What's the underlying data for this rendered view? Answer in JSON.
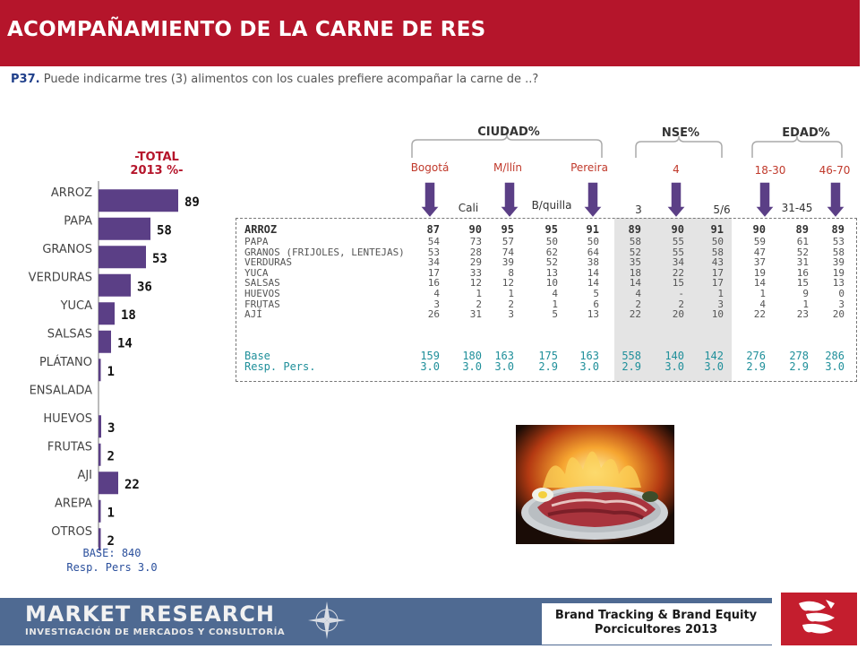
{
  "header": {
    "title": "ACOMPAÑAMIENTO DE LA CARNE DE RES"
  },
  "question": {
    "id": "P37.",
    "text": "Puede indicarme tres (3) alimentos con los cuales prefiere acompañar la carne de ..?"
  },
  "total": {
    "line1": "-TOTAL",
    "line2": "2013 %-"
  },
  "base": {
    "line1": "BASE:  840",
    "line2": "Resp. Pers  3.0"
  },
  "colors": {
    "bar": "#5b3f86",
    "accent": "#b5152b",
    "teal": "#1f8f9a",
    "footer": "#4f6a92"
  },
  "chart_data": {
    "type": "bar",
    "orientation": "horizontal",
    "title": "ACOMPAÑAMIENTO DE LA CARNE DE RES",
    "categories": [
      "ARROZ",
      "PAPA",
      "GRANOS",
      "VERDURAS",
      "YUCA",
      "SALSAS",
      "PLÁTANO",
      "ENSALADA",
      "HUEVOS",
      "FRUTAS",
      "AJI",
      "AREPA",
      "OTROS"
    ],
    "values": [
      89,
      58,
      53,
      36,
      18,
      14,
      1,
      0,
      3,
      2,
      22,
      1,
      2
    ],
    "value_labels": [
      "89",
      "58",
      "53",
      "36",
      "18",
      "14",
      "1",
      "",
      "3",
      "2",
      "22",
      "1",
      "2"
    ],
    "xlim": [
      0,
      100
    ]
  },
  "table": {
    "groups": [
      {
        "name": "CIUDAD%"
      },
      {
        "name": "NSE%"
      },
      {
        "name": "EDAD%"
      }
    ],
    "column_headers_top": [
      "Bogotá",
      "M/llín",
      "Pereira",
      "4",
      "18-30",
      "46-70"
    ],
    "column_headers_bottom": [
      "Cali",
      "B/quilla",
      "3",
      "5/6",
      "31-45"
    ],
    "rows": [
      {
        "label": "ARROZ",
        "values": [
          "87",
          "90",
          "95",
          "95",
          "91",
          "89",
          "90",
          "91",
          "90",
          "89",
          "89"
        ]
      },
      {
        "label": "PAPA",
        "values": [
          "54",
          "73",
          "57",
          "50",
          "50",
          "58",
          "55",
          "50",
          "59",
          "61",
          "53"
        ]
      },
      {
        "label": "GRANOS (FRIJOLES, LENTEJAS)",
        "values": [
          "53",
          "28",
          "74",
          "62",
          "64",
          "52",
          "55",
          "58",
          "47",
          "52",
          "58"
        ]
      },
      {
        "label": "VERDURAS",
        "values": [
          "34",
          "29",
          "39",
          "52",
          "38",
          "35",
          "34",
          "43",
          "37",
          "31",
          "39"
        ]
      },
      {
        "label": "YUCA",
        "values": [
          "17",
          "33",
          "8",
          "13",
          "14",
          "18",
          "22",
          "17",
          "19",
          "16",
          "19"
        ]
      },
      {
        "label": "SALSAS",
        "values": [
          "16",
          "12",
          "12",
          "10",
          "14",
          "14",
          "15",
          "17",
          "14",
          "15",
          "13"
        ]
      },
      {
        "label": "HUEVOS",
        "values": [
          "4",
          "1",
          "1",
          "4",
          "5",
          "4",
          "-",
          "1",
          "1",
          "9",
          "0"
        ]
      },
      {
        "label": "FRUTAS",
        "values": [
          "3",
          "2",
          "2",
          "1",
          "6",
          "2",
          "2",
          "3",
          "4",
          "1",
          "3"
        ]
      },
      {
        "label": "AJÍ",
        "values": [
          "26",
          "31",
          "3",
          "5",
          "13",
          "22",
          "20",
          "10",
          "22",
          "23",
          "20"
        ]
      }
    ],
    "base_rows": [
      {
        "label": "Base",
        "values": [
          "159",
          "180",
          "163",
          "175",
          "163",
          "558",
          "140",
          "142",
          "276",
          "278",
          "286"
        ]
      },
      {
        "label": "Resp. Pers.",
        "values": [
          "3.0",
          "3.0",
          "3.0",
          "2.9",
          "3.0",
          "2.9",
          "3.0",
          "3.0",
          "2.9",
          "2.9",
          "3.0"
        ]
      }
    ]
  },
  "footer": {
    "logo": "MARKET RESEARCH",
    "logo_sub": "INVESTIGACIÓN DE MERCADOS Y CONSULTORÍA",
    "brand_line1": "Brand Tracking & Brand Equity",
    "brand_line2": "Porcicultores 2013"
  }
}
